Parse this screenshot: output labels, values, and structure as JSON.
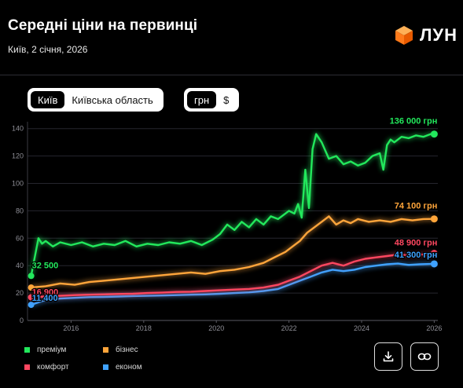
{
  "header": {
    "title": "Середні ціни на первинці",
    "subtitle": "Київ, 2 січня, 2026",
    "logo_text": "ЛУН",
    "logo_icon": "cube-icon"
  },
  "region_toggle": {
    "options": [
      "Київ",
      "Київська область"
    ],
    "selected": "Київ"
  },
  "currency_toggle": {
    "options": [
      "грн",
      "$"
    ],
    "selected": "грн"
  },
  "actions": {
    "download_icon": "download-icon",
    "link_icon": "link-icon"
  },
  "chart_data": {
    "type": "line",
    "title": "Середні ціни на первинці",
    "xlim": [
      2014.8,
      2026.1
    ],
    "ylim": [
      0,
      145
    ],
    "x_ticks": [
      2016,
      2018,
      2020,
      2022,
      2024,
      2026
    ],
    "y_ticks": [
      0,
      20,
      40,
      60,
      80,
      100,
      120,
      140
    ],
    "grid": "horizontal",
    "legend_position": "bottom-left",
    "series": [
      {
        "name": "преміум",
        "color": "#22e85c",
        "start_label": "32 500",
        "end_label": "136 000 грн",
        "x": [
          2014.9,
          2015.1,
          2015.2,
          2015.3,
          2015.5,
          2015.7,
          2016.0,
          2016.3,
          2016.6,
          2016.9,
          2017.2,
          2017.5,
          2017.8,
          2018.1,
          2018.4,
          2018.7,
          2019.0,
          2019.3,
          2019.6,
          2019.9,
          2020.1,
          2020.3,
          2020.5,
          2020.7,
          2020.9,
          2021.1,
          2021.3,
          2021.5,
          2021.7,
          2021.9,
          2022.0,
          2022.15,
          2022.25,
          2022.35,
          2022.45,
          2022.55,
          2022.65,
          2022.75,
          2022.9,
          2023.1,
          2023.3,
          2023.5,
          2023.7,
          2023.9,
          2024.1,
          2024.3,
          2024.5,
          2024.6,
          2024.7,
          2024.8,
          2024.9,
          2025.1,
          2025.3,
          2025.5,
          2025.7,
          2025.9,
          2026.0
        ],
        "y": [
          32.5,
          60,
          56,
          58,
          54,
          57,
          55,
          57,
          54,
          56,
          55,
          58,
          54,
          56,
          55,
          57,
          56,
          58,
          55,
          59,
          63,
          70,
          66,
          72,
          68,
          74,
          70,
          76,
          74,
          78,
          80,
          78,
          85,
          75,
          110,
          82,
          125,
          136,
          130,
          118,
          120,
          114,
          116,
          113,
          115,
          120,
          122,
          110,
          128,
          132,
          130,
          134,
          133,
          135,
          134,
          136,
          136
        ]
      },
      {
        "name": "бізнес",
        "color": "#ffa53a",
        "start_label": "",
        "end_label": "74 100 грн",
        "x": [
          2014.9,
          2015.3,
          2015.7,
          2016.1,
          2016.5,
          2016.9,
          2017.3,
          2017.7,
          2018.1,
          2018.5,
          2018.9,
          2019.3,
          2019.7,
          2020.1,
          2020.5,
          2020.9,
          2021.3,
          2021.6,
          2021.9,
          2022.1,
          2022.3,
          2022.5,
          2022.7,
          2022.9,
          2023.1,
          2023.3,
          2023.5,
          2023.7,
          2023.9,
          2024.2,
          2024.5,
          2024.8,
          2025.1,
          2025.4,
          2025.7,
          2026.0
        ],
        "y": [
          24,
          25,
          27,
          26,
          28,
          29,
          30,
          31,
          32,
          33,
          34,
          35,
          34,
          36,
          37,
          39,
          42,
          46,
          50,
          54,
          58,
          64,
          68,
          72,
          76,
          70,
          73,
          71,
          74,
          72,
          73,
          72,
          74,
          73,
          74,
          74.1
        ]
      },
      {
        "name": "комфорт",
        "color": "#ff4760",
        "start_label": "16 900",
        "end_label": "48 900 грн",
        "x": [
          2014.9,
          2015.3,
          2015.7,
          2016.1,
          2016.5,
          2016.9,
          2017.3,
          2017.7,
          2018.1,
          2018.5,
          2018.9,
          2019.3,
          2019.7,
          2020.1,
          2020.5,
          2020.9,
          2021.3,
          2021.7,
          2022.0,
          2022.3,
          2022.6,
          2022.9,
          2023.2,
          2023.5,
          2023.8,
          2024.1,
          2024.4,
          2024.7,
          2025.0,
          2025.3,
          2025.6,
          2025.9,
          2026.0
        ],
        "y": [
          16.9,
          17.5,
          18,
          18.5,
          18.8,
          19,
          19.3,
          19.5,
          20,
          20.3,
          20.8,
          21,
          21.5,
          22,
          22.5,
          23,
          24,
          26,
          29,
          32,
          36,
          40,
          42,
          40,
          43,
          45,
          46,
          47,
          48,
          47.5,
          48,
          48.5,
          48.9
        ]
      },
      {
        "name": "економ",
        "color": "#3fa2ff",
        "start_label": "11 400",
        "end_label": "41 300 грн",
        "x": [
          2014.9,
          2015.3,
          2015.7,
          2016.1,
          2016.5,
          2016.9,
          2017.3,
          2017.7,
          2018.1,
          2018.5,
          2018.9,
          2019.3,
          2019.7,
          2020.1,
          2020.5,
          2020.9,
          2021.3,
          2021.7,
          2022.0,
          2022.3,
          2022.6,
          2022.9,
          2023.2,
          2023.5,
          2023.8,
          2024.1,
          2024.4,
          2024.7,
          2025.0,
          2025.3,
          2025.6,
          2025.9,
          2026.0
        ],
        "y": [
          11.4,
          15,
          16,
          16.5,
          17,
          17.2,
          17.5,
          17.8,
          18,
          18.2,
          18.5,
          18.8,
          19,
          19.5,
          20,
          20.5,
          21.5,
          23,
          26,
          29,
          32,
          35,
          37,
          36,
          37,
          39,
          40,
          41,
          41.5,
          40.5,
          41,
          41.2,
          41.3
        ]
      }
    ]
  }
}
